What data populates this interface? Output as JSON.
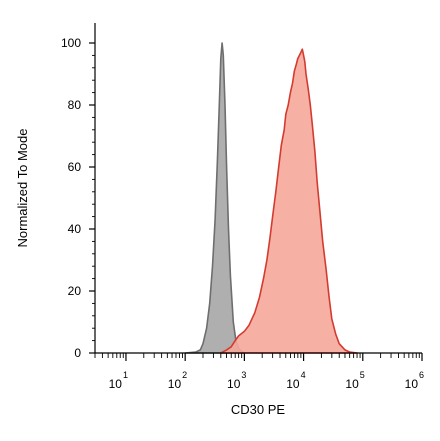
{
  "chart_data": {
    "type": "area",
    "title": "",
    "xlabel": "CD30 PE",
    "ylabel": "Normalized To Mode",
    "xscale": "log",
    "xlim": [
      3,
      1000000
    ],
    "ylim": [
      0,
      100
    ],
    "grid": false,
    "x_ticks": [
      {
        "base": "10",
        "exp": "1",
        "value": 10
      },
      {
        "base": "10",
        "exp": "2",
        "value": 100
      },
      {
        "base": "10",
        "exp": "3",
        "value": 1000
      },
      {
        "base": "10",
        "exp": "4",
        "value": 10000
      },
      {
        "base": "10",
        "exp": "5",
        "value": 100000
      },
      {
        "base": "10",
        "exp": "6",
        "value": 1000000
      }
    ],
    "y_ticks": [
      0,
      20,
      40,
      60,
      80,
      100
    ],
    "series": [
      {
        "fill": "#a6a6a6",
        "stroke": "#6e6e6e",
        "points": [
          [
            100,
            0
          ],
          [
            150,
            0.3
          ],
          [
            180,
            1
          ],
          [
            200,
            3
          ],
          [
            230,
            8
          ],
          [
            260,
            16
          ],
          [
            290,
            28
          ],
          [
            320,
            43
          ],
          [
            350,
            62
          ],
          [
            380,
            82
          ],
          [
            400,
            95
          ],
          [
            420,
            100
          ],
          [
            440,
            96
          ],
          [
            470,
            80
          ],
          [
            500,
            60
          ],
          [
            540,
            40
          ],
          [
            580,
            25
          ],
          [
            650,
            10
          ],
          [
            720,
            4
          ],
          [
            800,
            1.5
          ],
          [
            900,
            0.5
          ],
          [
            1000,
            0
          ]
        ]
      },
      {
        "fill": "#f5a99a",
        "stroke": "#d43b30",
        "points": [
          [
            400,
            0
          ],
          [
            500,
            1
          ],
          [
            600,
            2
          ],
          [
            700,
            4
          ],
          [
            800,
            5.5
          ],
          [
            1000,
            7
          ],
          [
            1200,
            9
          ],
          [
            1500,
            13
          ],
          [
            1800,
            18
          ],
          [
            2100,
            24
          ],
          [
            2400,
            30
          ],
          [
            2700,
            37
          ],
          [
            3000,
            44
          ],
          [
            3400,
            52
          ],
          [
            3800,
            60
          ],
          [
            4200,
            67
          ],
          [
            4700,
            72
          ],
          [
            5000,
            77
          ],
          [
            5500,
            80
          ],
          [
            6000,
            84
          ],
          [
            6500,
            87
          ],
          [
            7000,
            91
          ],
          [
            7500,
            93
          ],
          [
            8000,
            95
          ],
          [
            8500,
            96
          ],
          [
            9000,
            97
          ],
          [
            9500,
            98
          ],
          [
            10000,
            96
          ],
          [
            10500,
            94
          ],
          [
            11000,
            90
          ],
          [
            12000,
            85
          ],
          [
            13000,
            80
          ],
          [
            14000,
            74
          ],
          [
            15500,
            65
          ],
          [
            17000,
            55
          ],
          [
            19000,
            45
          ],
          [
            21000,
            36
          ],
          [
            24000,
            27
          ],
          [
            27000,
            18
          ],
          [
            30000,
            11
          ],
          [
            35000,
            6
          ],
          [
            40000,
            3
          ],
          [
            50000,
            1
          ],
          [
            60000,
            0.3
          ],
          [
            80000,
            0
          ]
        ]
      }
    ]
  }
}
